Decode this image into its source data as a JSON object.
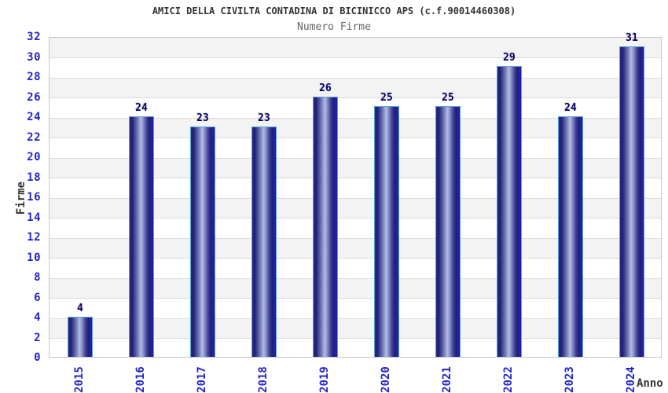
{
  "header": {
    "title": "AMICI DELLA CIVILTA CONTADINA DI BICINICCO APS (c.f.90014460308)",
    "subtitle": "Numero Firme"
  },
  "chart_data": {
    "type": "bar",
    "title": "AMICI DELLA CIVILTA CONTADINA DI BICINICCO APS (c.f.90014460308)",
    "subtitle": "Numero Firme",
    "categories": [
      "2015",
      "2016",
      "2017",
      "2018",
      "2019",
      "2020",
      "2021",
      "2022",
      "2023",
      "2024"
    ],
    "values": [
      4,
      24,
      23,
      23,
      26,
      25,
      25,
      29,
      24,
      31
    ],
    "xlabel": "Anno",
    "ylabel": "Firme",
    "ylim": [
      0,
      32
    ],
    "ytick_step": 2,
    "bar_value_labels_shown": true,
    "legend_position": "none",
    "grid": "horizontal gridlines with alternating gray/white bands every 2 units"
  },
  "colors": {
    "axis_text": "#2424cc",
    "value_label": "#00006a",
    "title_text": "#333333",
    "subtitle_text": "#666666",
    "band": "#f3f3f3",
    "gridline": "#dcdcdc",
    "plot_border": "#c6c6c6",
    "bar_border": "#56a0e0",
    "bar_dark": "#1e1e72",
    "bar_light": "#b0badf",
    "page_bg": "#ffffff"
  }
}
